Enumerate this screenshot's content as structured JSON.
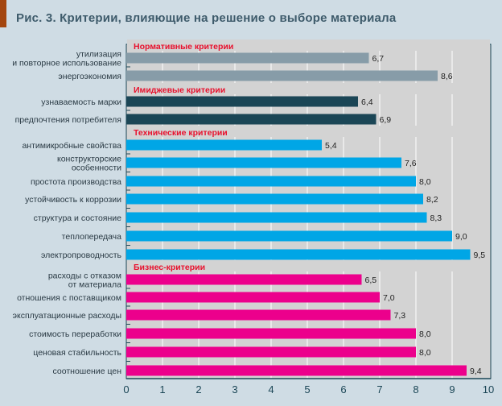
{
  "chart_data": {
    "type": "bar",
    "orientation": "horizontal",
    "title": "Рис. 3. Критерии, влияющие на решение о выборе материала",
    "xlim": [
      0,
      10
    ],
    "xticks": [
      0,
      1,
      2,
      3,
      4,
      5,
      6,
      7,
      8,
      9,
      10
    ],
    "grid": true,
    "groups": [
      {
        "name": "Нормативные критерии",
        "color": "#879ca8",
        "items": [
          {
            "label": [
              "утилизация",
              "и повторное использование"
            ],
            "value": 6.7,
            "value_label": "6,7"
          },
          {
            "label": [
              "энергоэкономия"
            ],
            "value": 8.6,
            "value_label": "8,6"
          }
        ]
      },
      {
        "name": "Имиджевые критерии",
        "color": "#1b4656",
        "items": [
          {
            "label": [
              "узнаваемость марки"
            ],
            "value": 6.4,
            "value_label": "6,4"
          },
          {
            "label": [
              "предпочтения потребителя"
            ],
            "value": 6.9,
            "value_label": "6,9"
          }
        ]
      },
      {
        "name": "Технические критерии",
        "color": "#00a6e6",
        "items": [
          {
            "label": [
              "антимикробные свойства"
            ],
            "value": 5.4,
            "value_label": "5,4"
          },
          {
            "label": [
              "конструкторские",
              "особенности"
            ],
            "value": 7.6,
            "value_label": "7,6"
          },
          {
            "label": [
              "простота производства"
            ],
            "value": 8.0,
            "value_label": "8,0"
          },
          {
            "label": [
              "устойчивость к коррозии"
            ],
            "value": 8.2,
            "value_label": "8,2"
          },
          {
            "label": [
              "структура и состояние"
            ],
            "value": 8.3,
            "value_label": "8,3"
          },
          {
            "label": [
              "теплопередача"
            ],
            "value": 9.0,
            "value_label": "9,0"
          },
          {
            "label": [
              "электропроводность"
            ],
            "value": 9.5,
            "value_label": "9,5"
          }
        ]
      },
      {
        "name": "Бизнес-критерии",
        "color": "#ec008c",
        "items": [
          {
            "label": [
              "расходы с отказом",
              "от материала"
            ],
            "value": 6.5,
            "value_label": "6,5"
          },
          {
            "label": [
              "отношения с поставщиком"
            ],
            "value": 7.0,
            "value_label": "7,0"
          },
          {
            "label": [
              "эксплуатационные расходы"
            ],
            "value": 7.3,
            "value_label": "7,3"
          },
          {
            "label": [
              "стоимость переработки"
            ],
            "value": 8.0,
            "value_label": "8,0"
          },
          {
            "label": [
              "ценовая стабильность"
            ],
            "value": 8.0,
            "value_label": "8,0"
          },
          {
            "label": [
              "соотношение цен"
            ],
            "value": 9.4,
            "value_label": "9,4"
          }
        ]
      }
    ],
    "colors": {
      "background": "#cfdce4",
      "plot_background": "#d3d3d3",
      "grid": "#ffffff",
      "group_header": "#e8112d",
      "axis": "#1b4656"
    }
  }
}
